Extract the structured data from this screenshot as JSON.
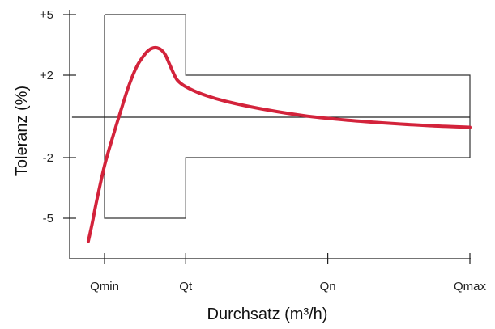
{
  "chart_data": {
    "type": "line",
    "xlabel": "Durchsatz (m³/h)",
    "ylabel": "Toleranz (%)",
    "x_ticks": [
      {
        "label": "Qmin",
        "x": 1
      },
      {
        "label": "Qt",
        "x": 2
      },
      {
        "label": "Qn",
        "x": 3.75
      },
      {
        "label": "Qmax",
        "x": 5.5
      }
    ],
    "y_ticks": [
      {
        "label": "+5",
        "y": 5
      },
      {
        "label": "+2",
        "y": 2
      },
      {
        "label": "-2",
        "y": -2
      },
      {
        "label": "-5",
        "y": -5
      }
    ],
    "xlim": [
      0.45,
      5.5
    ],
    "ylim": [
      -7,
      5.4
    ],
    "grid": false,
    "tolerance_envelope": [
      [
        1,
        5
      ],
      [
        2,
        5
      ],
      [
        2,
        2
      ],
      [
        5.5,
        2
      ],
      [
        5.5,
        -2
      ],
      [
        2,
        -2
      ],
      [
        2,
        -5
      ],
      [
        1,
        -5
      ],
      [
        1,
        5
      ]
    ],
    "reference_line": {
      "y": 0,
      "x_from": 0.6,
      "x_to": 5.5
    },
    "series": [
      {
        "color": "#d3233b",
        "x": [
          0.8,
          0.85,
          0.9,
          1.0,
          1.1,
          1.2,
          1.3,
          1.4,
          1.5,
          1.55,
          1.6,
          1.65,
          1.7,
          1.75,
          1.8,
          1.85,
          1.9,
          2.0,
          2.2,
          2.5,
          3.0,
          3.5,
          4.0,
          4.5,
          5.0,
          5.5
        ],
        "y": [
          -6.5,
          -5.3,
          -4.2,
          -2.4,
          -1.0,
          0.3,
          1.5,
          2.45,
          3.05,
          3.25,
          3.35,
          3.35,
          3.25,
          3.0,
          2.55,
          2.1,
          1.75,
          1.45,
          1.1,
          0.75,
          0.35,
          0.05,
          -0.15,
          -0.3,
          -0.42,
          -0.5
        ]
      }
    ]
  }
}
